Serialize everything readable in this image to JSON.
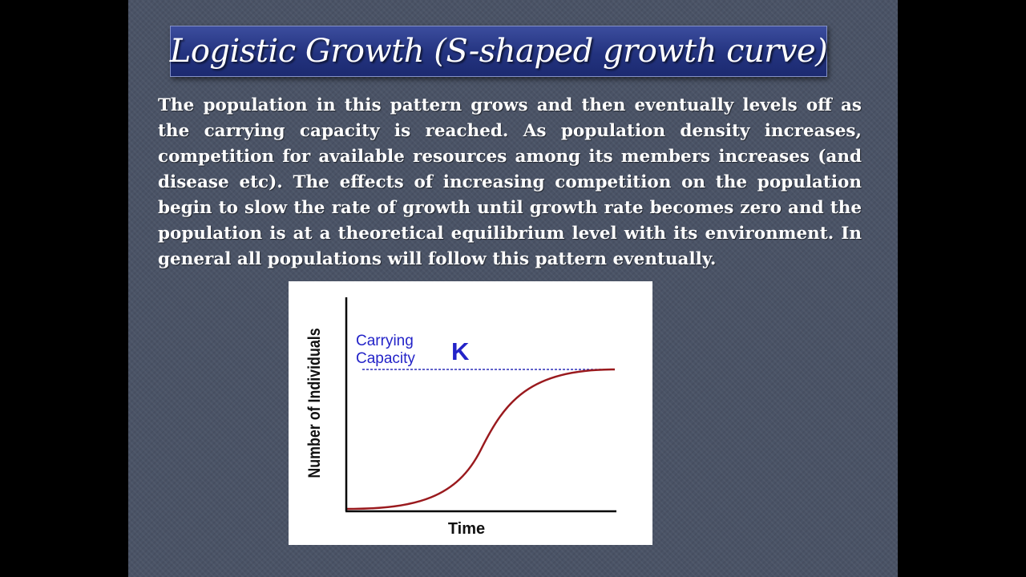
{
  "title": "Logistic Growth (S-shaped growth curve)",
  "paragraph": "The population in this pattern  grows and then eventually levels off as the carrying capacity is reached. As population density increases, competition for available resources among its members increases (and disease etc). The effects of increasing competition on the population begin to slow the rate of growth until growth rate becomes zero and the population is at a theoretical equilibrium level with its environment.  In general all populations will follow this  pattern eventually.",
  "diagram": {
    "y_axis_label": "Number of Individuals",
    "x_axis_label": "Time",
    "capacity_label_line1": "Carrying",
    "capacity_label_line2": "Capacity",
    "capacity_symbol": "K",
    "colors": {
      "curve": "#9a1a1e",
      "capacity_line": "#2d2fb8",
      "capacity_text": "#2323c8",
      "axes": "#000000",
      "title_bar": "#23337f"
    }
  }
}
